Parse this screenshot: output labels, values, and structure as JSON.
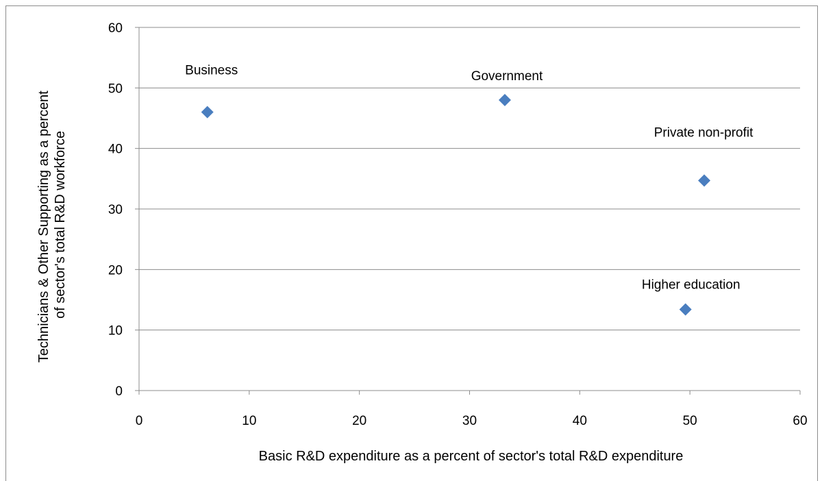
{
  "chart_data": {
    "type": "scatter",
    "title": "",
    "xlabel": "Basic R&D expenditure as a percent of sector's total R&D expenditure",
    "ylabel_lines": [
      "Technicians & Other Supporting  as a percent",
      "of sector's total R&D workforce"
    ],
    "xlim": [
      0,
      60
    ],
    "ylim": [
      0,
      60
    ],
    "xticks": [
      0,
      10,
      20,
      30,
      40,
      50,
      60
    ],
    "yticks": [
      0,
      10,
      20,
      30,
      40,
      50,
      60
    ],
    "grid": "horizontal",
    "legend": "none",
    "marker": "diamond",
    "marker_color": "#4a7ebf",
    "points": [
      {
        "label": "Business",
        "x": 6.2,
        "y": 46
      },
      {
        "label": "Government",
        "x": 33.2,
        "y": 48
      },
      {
        "label": "Private non-profit",
        "x": 51.3,
        "y": 34.7
      },
      {
        "label": "Higher education",
        "x": 49.6,
        "y": 13.4
      }
    ]
  }
}
